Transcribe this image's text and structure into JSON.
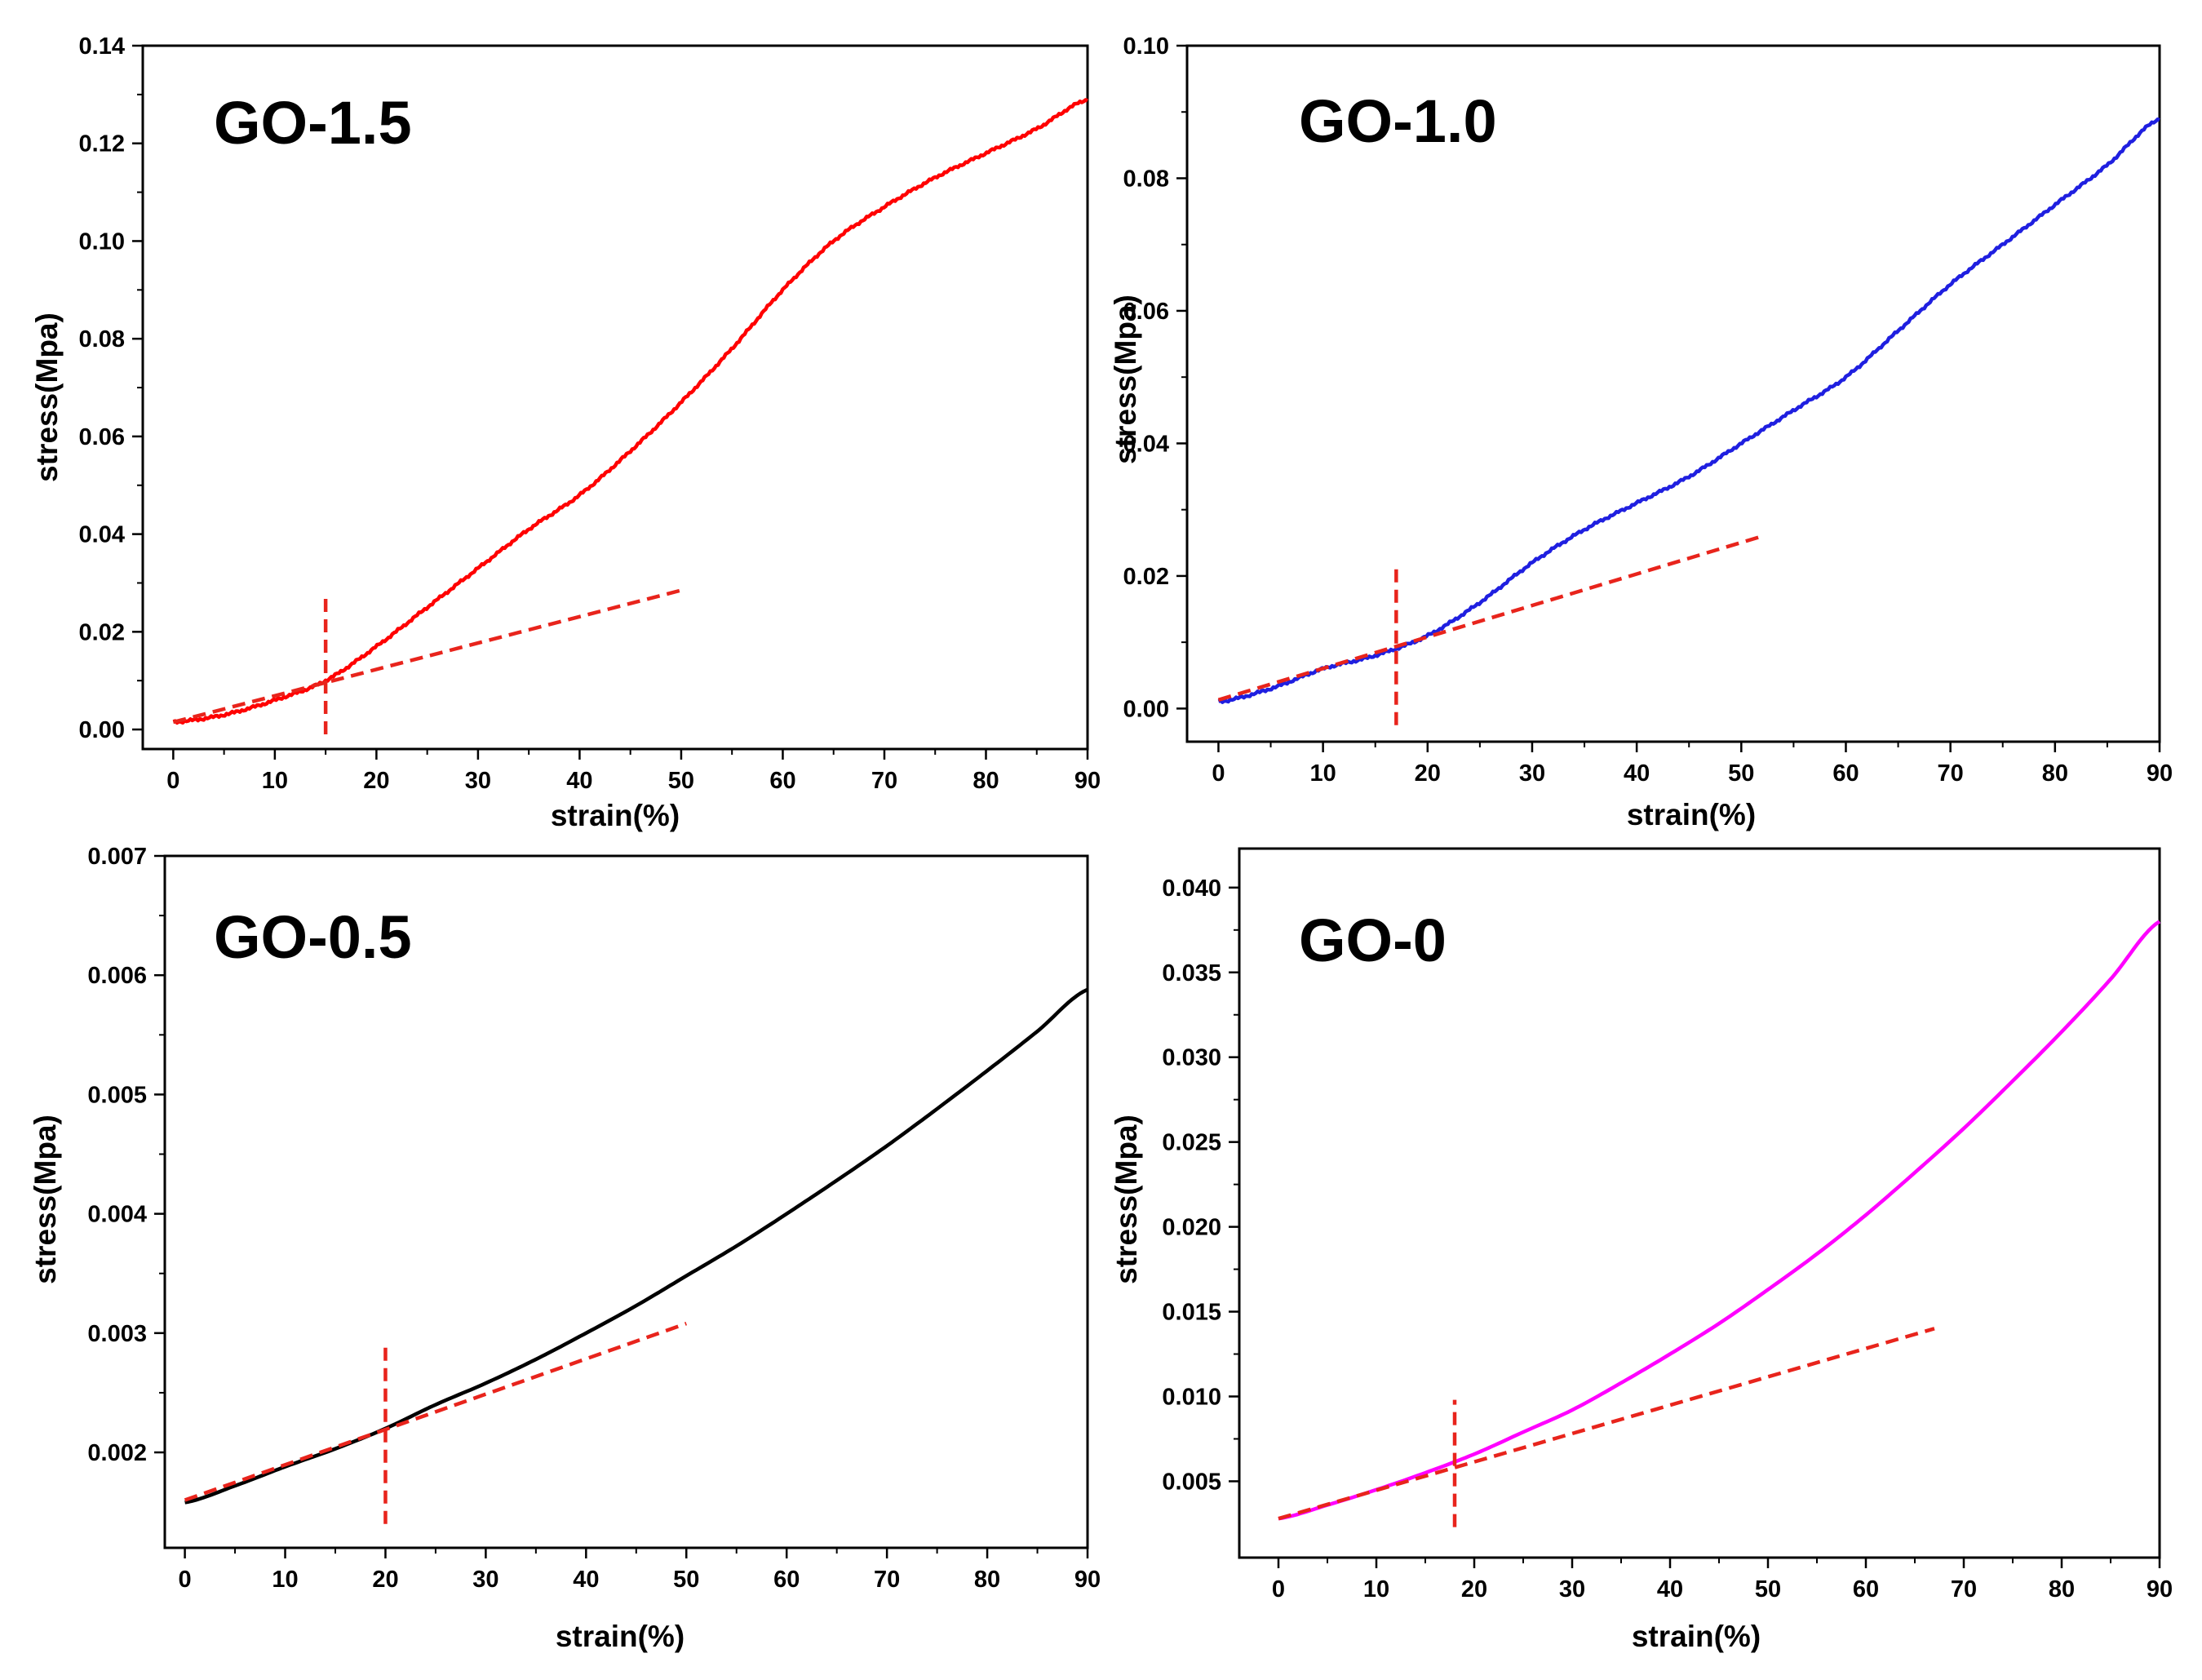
{
  "chart_data": [
    {
      "type": "line",
      "title": "GO-1.5",
      "xlabel": "strain(%)",
      "ylabel": "stress(Mpa)",
      "xlim": [
        -3,
        90
      ],
      "ylim": [
        -0.004,
        0.14
      ],
      "xticks": [
        0,
        10,
        20,
        30,
        40,
        50,
        60,
        70,
        80,
        90
      ],
      "yticks": [
        0.0,
        0.02,
        0.04,
        0.06,
        0.08,
        0.1,
        0.12,
        0.14
      ],
      "ytick_labels": [
        "0.00",
        "0.02",
        "0.04",
        "0.06",
        "0.08",
        "0.10",
        "0.12",
        "0.14"
      ],
      "grid": false,
      "series": [
        {
          "name": "GO-1.5",
          "color": "#ff0000",
          "noisy": true,
          "x": [
            0,
            5,
            10,
            15,
            20,
            25,
            30,
            35,
            40,
            45,
            50,
            55,
            60,
            65,
            70,
            75,
            80,
            85,
            90
          ],
          "y": [
            0.0015,
            0.003,
            0.006,
            0.01,
            0.017,
            0.025,
            0.033,
            0.041,
            0.048,
            0.057,
            0.067,
            0.078,
            0.09,
            0.1,
            0.107,
            0.113,
            0.118,
            0.123,
            0.129
          ]
        }
      ],
      "annotations": [
        {
          "kind": "tangent-line",
          "x": [
            0,
            50
          ],
          "y": [
            0.0015,
            0.0285
          ],
          "color": "#e8241c",
          "style": "dashed"
        },
        {
          "kind": "yield-marker",
          "x": 15,
          "y": [
            -0.001,
            0.027
          ],
          "color": "#e8241c",
          "style": "dashed"
        }
      ]
    },
    {
      "type": "line",
      "title": "GO-1.0",
      "xlabel": "strain(%)",
      "ylabel": "stress(Mpa)",
      "xlim": [
        -3,
        90
      ],
      "ylim": [
        -0.005,
        0.1
      ],
      "xticks": [
        0,
        10,
        20,
        30,
        40,
        50,
        60,
        70,
        80,
        90
      ],
      "yticks": [
        0.0,
        0.02,
        0.04,
        0.06,
        0.08,
        0.1
      ],
      "ytick_labels": [
        "0.00",
        "0.02",
        "0.04",
        "0.06",
        "0.08",
        "0.10"
      ],
      "grid": false,
      "series": [
        {
          "name": "GO-1.0",
          "color": "#1f1fe0",
          "noisy": true,
          "x": [
            0,
            5,
            10,
            15,
            20,
            25,
            30,
            35,
            40,
            45,
            50,
            55,
            60,
            65,
            70,
            75,
            80,
            85,
            90
          ],
          "y": [
            0.001,
            0.003,
            0.006,
            0.008,
            0.011,
            0.016,
            0.022,
            0.027,
            0.031,
            0.035,
            0.04,
            0.045,
            0.05,
            0.057,
            0.064,
            0.07,
            0.076,
            0.082,
            0.089
          ]
        }
      ],
      "annotations": [
        {
          "kind": "tangent-line",
          "x": [
            0,
            52
          ],
          "y": [
            0.0013,
            0.026
          ],
          "color": "#e8241c",
          "style": "dashed"
        },
        {
          "kind": "yield-marker",
          "x": 17,
          "y": [
            -0.0025,
            0.022
          ],
          "color": "#e8241c",
          "style": "dashed"
        }
      ]
    },
    {
      "type": "line",
      "title": "GO-0.5",
      "xlabel": "strain(%)",
      "ylabel": "stress(Mpa)",
      "xlim": [
        -2,
        90
      ],
      "ylim": [
        0.0012,
        0.007
      ],
      "xticks": [
        0,
        10,
        20,
        30,
        40,
        50,
        60,
        70,
        80,
        90
      ],
      "yticks": [
        0.002,
        0.003,
        0.004,
        0.005,
        0.006,
        0.007
      ],
      "ytick_labels": [
        "0.002",
        "0.003",
        "0.004",
        "0.005",
        "0.006",
        "0.007"
      ],
      "grid": false,
      "series": [
        {
          "name": "GO-0.5",
          "color": "#000000",
          "noisy": false,
          "x": [
            0,
            5,
            10,
            15,
            20,
            25,
            30,
            35,
            40,
            45,
            50,
            55,
            60,
            65,
            70,
            75,
            80,
            85,
            90
          ],
          "y": [
            0.00158,
            0.00172,
            0.00188,
            0.00203,
            0.0022,
            0.0024,
            0.00258,
            0.00278,
            0.003,
            0.00323,
            0.00348,
            0.00373,
            0.004,
            0.00428,
            0.00457,
            0.00488,
            0.0052,
            0.00553,
            0.00588
          ]
        }
      ],
      "annotations": [
        {
          "kind": "tangent-line",
          "x": [
            0,
            50
          ],
          "y": [
            0.0016,
            0.00308
          ],
          "color": "#e8241c",
          "style": "dashed"
        },
        {
          "kind": "yield-marker",
          "x": 20,
          "y": [
            0.0014,
            0.00288
          ],
          "color": "#e8241c",
          "style": "dashed"
        }
      ]
    },
    {
      "type": "line",
      "title": "GO-0",
      "xlabel": "strain(%)",
      "ylabel": "stress(Mpa)",
      "xlim": [
        -4,
        90
      ],
      "ylim": [
        0.0005,
        0.0423
      ],
      "xticks": [
        0,
        10,
        20,
        30,
        40,
        50,
        60,
        70,
        80,
        90
      ],
      "yticks": [
        0.005,
        0.01,
        0.015,
        0.02,
        0.025,
        0.03,
        0.035,
        0.04
      ],
      "ytick_labels": [
        "0.005",
        "0.010",
        "0.015",
        "0.020",
        "0.025",
        "0.030",
        "0.035",
        "0.040"
      ],
      "grid": false,
      "series": [
        {
          "name": "GO-0",
          "color": "#ff00ff",
          "noisy": false,
          "x": [
            0,
            5,
            10,
            15,
            20,
            25,
            30,
            35,
            40,
            45,
            50,
            55,
            60,
            65,
            70,
            75,
            80,
            85,
            90
          ],
          "y": [
            0.0028,
            0.0036,
            0.0045,
            0.0055,
            0.0066,
            0.0079,
            0.0092,
            0.0108,
            0.0125,
            0.0143,
            0.0163,
            0.0184,
            0.0207,
            0.0232,
            0.0258,
            0.0286,
            0.0315,
            0.0346,
            0.038
          ]
        }
      ],
      "annotations": [
        {
          "kind": "tangent-line",
          "x": [
            0,
            67
          ],
          "y": [
            0.0028,
            0.014
          ],
          "color": "#e8241c",
          "style": "dashed"
        },
        {
          "kind": "yield-marker",
          "x": 18,
          "y": [
            0.0023,
            0.0098
          ],
          "color": "#e8241c",
          "style": "dashed"
        }
      ]
    }
  ]
}
